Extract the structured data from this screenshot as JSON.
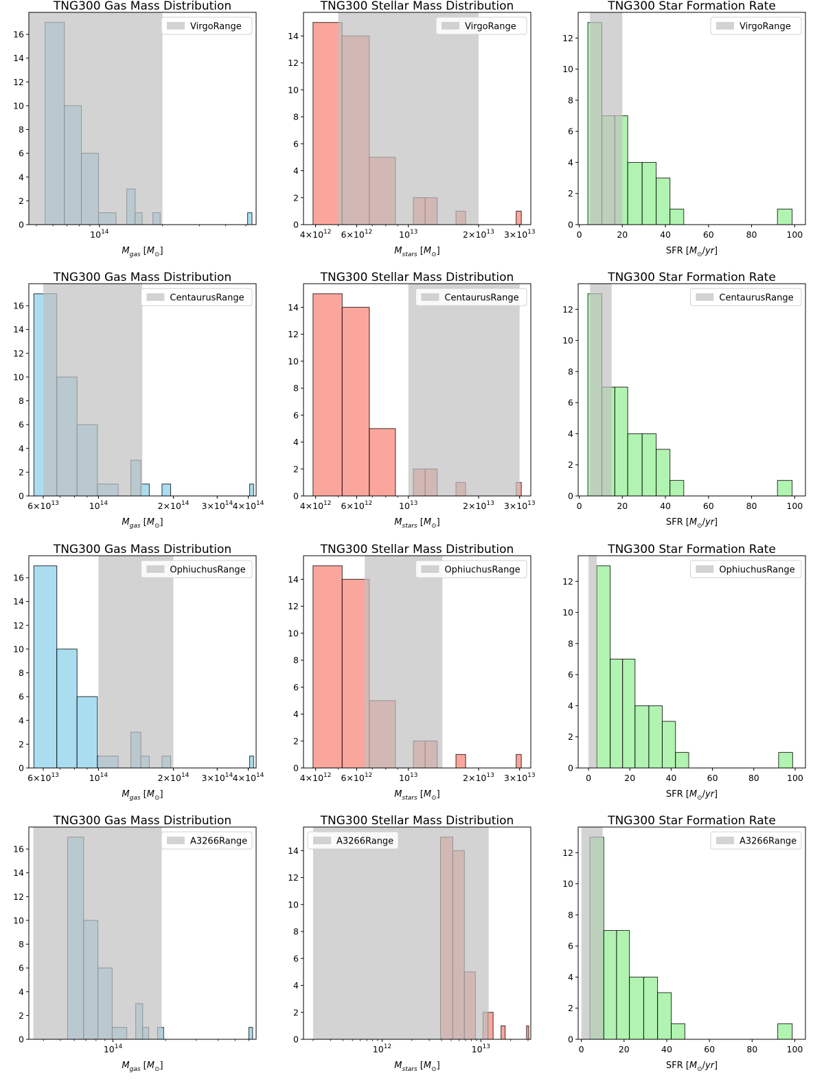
{
  "colors": {
    "gas": "#87ceeb",
    "stars": "#fa8072",
    "sfr": "#90ee90",
    "range": "#c0c0c0"
  },
  "chart_data": [
    {
      "type": "bar",
      "title": "TNG300 Gas Mass Distribution",
      "xlabel": "M_gas [M_⊙]",
      "xscale": "log",
      "xlim": [
        46000000000000.0,
        560000000000000.0
      ],
      "ylim": [
        0,
        17.85
      ],
      "yticks": [
        0,
        2,
        4,
        6,
        8,
        10,
        12,
        14,
        16
      ],
      "xticks": [
        {
          "value": 100000000000000.0,
          "label": "10^14"
        }
      ],
      "color": "gas",
      "bins": [
        [
          55000000000000.0,
          68000000000000.0,
          17
        ],
        [
          68000000000000.0,
          82000000000000.0,
          10
        ],
        [
          82000000000000.0,
          99000000000000.0,
          6
        ],
        [
          99000000000000.0,
          120000000000000.0,
          1
        ],
        [
          135000000000000.0,
          148000000000000.0,
          3
        ],
        [
          148000000000000.0,
          160000000000000.0,
          1
        ],
        [
          180000000000000.0,
          195000000000000.0,
          1
        ],
        [
          510000000000000.0,
          535000000000000.0,
          1
        ]
      ],
      "range": [
        46000000000000.0,
        200000000000000.0
      ],
      "legend": "VirgoRange",
      "legend_loc": "upper right"
    },
    {
      "type": "bar",
      "title": "TNG300 Stellar Mass Distribution",
      "xlabel": "M_stars [M_⊙]",
      "xscale": "log",
      "xlim": [
        3550000000000.0,
        33500000000000.0
      ],
      "ylim": [
        0,
        15.75
      ],
      "yticks": [
        0,
        2,
        4,
        6,
        8,
        10,
        12,
        14
      ],
      "xticks": [
        {
          "value": 4000000000000.0,
          "label": "4×10^12"
        },
        {
          "value": 6000000000000.0,
          "label": "6×10^12"
        },
        {
          "value": 10000000000000.0,
          "label": "10^13"
        },
        {
          "value": 20000000000000.0,
          "label": "2×10^13"
        },
        {
          "value": 30000000000000.0,
          "label": "3×10^13"
        }
      ],
      "color": "stars",
      "bins": [
        [
          3900000000000.0,
          5200000000000.0,
          15
        ],
        [
          5200000000000.0,
          6800000000000.0,
          14
        ],
        [
          6800000000000.0,
          8800000000000.0,
          5
        ],
        [
          10500000000000.0,
          11800000000000.0,
          2
        ],
        [
          11800000000000.0,
          13300000000000.0,
          2
        ],
        [
          16000000000000.0,
          17600000000000.0,
          1
        ],
        [
          29000000000000.0,
          30500000000000.0,
          1
        ]
      ],
      "range": [
        5000000000000.0,
        20000000000000.0
      ],
      "legend": "VirgoRange",
      "legend_loc": "upper right"
    },
    {
      "type": "bar",
      "title": "TNG300 Star Formation Rate",
      "xlabel": "SFR [M_⊙/yr]",
      "xscale": "linear",
      "xlim": [
        -0.5,
        105
      ],
      "ylim": [
        0,
        13.65
      ],
      "yticks": [
        0,
        2,
        4,
        6,
        8,
        10,
        12
      ],
      "xticks": [
        {
          "value": 0,
          "label": "0"
        },
        {
          "value": 20,
          "label": "20"
        },
        {
          "value": 40,
          "label": "40"
        },
        {
          "value": 60,
          "label": "60"
        },
        {
          "value": 80,
          "label": "80"
        },
        {
          "value": 100,
          "label": "100"
        }
      ],
      "color": "sfr",
      "bins": [
        [
          4,
          10.5,
          13
        ],
        [
          10.5,
          16.5,
          7
        ],
        [
          16.5,
          22.5,
          7
        ],
        [
          22.5,
          29.2,
          4
        ],
        [
          29.2,
          35.7,
          4
        ],
        [
          35.7,
          42.1,
          3
        ],
        [
          42.1,
          48.5,
          1
        ],
        [
          92,
          98.8,
          1
        ]
      ],
      "range": [
        5,
        20
      ],
      "legend": "VirgoRange",
      "legend_loc": "upper right"
    },
    {
      "type": "bar",
      "title": "TNG300 Gas Mass Distribution",
      "xlabel": "M_gas [M_⊙]",
      "xscale": "log",
      "xlim": [
        52500000000000.0,
        430000000000000.0
      ],
      "ylim": [
        0,
        17.85
      ],
      "yticks": [
        0,
        2,
        4,
        6,
        8,
        10,
        12,
        14,
        16
      ],
      "xticks": [
        {
          "value": 60000000000000.0,
          "label": "6×10^13"
        },
        {
          "value": 100000000000000.0,
          "label": "10^14"
        },
        {
          "value": 200000000000000.0,
          "label": "2×10^14"
        },
        {
          "value": 300000000000000.0,
          "label": "3×10^14"
        },
        {
          "value": 400000000000000.0,
          "label": "4×10^14"
        }
      ],
      "color": "gas",
      "bins": [
        [
          55000000000000.0,
          68000000000000.0,
          17
        ],
        [
          68000000000000.0,
          82000000000000.0,
          10
        ],
        [
          82000000000000.0,
          99000000000000.0,
          6
        ],
        [
          99000000000000.0,
          120000000000000.0,
          1
        ],
        [
          135000000000000.0,
          148000000000000.0,
          3
        ],
        [
          148000000000000.0,
          160000000000000.0,
          1
        ],
        [
          180000000000000.0,
          195000000000000.0,
          1
        ],
        [
          405000000000000.0,
          420000000000000.0,
          1
        ]
      ],
      "range": [
        60000000000000.0,
        150000000000000.0
      ],
      "legend": "CentaurusRange",
      "legend_loc": "upper right"
    },
    {
      "type": "bar",
      "title": "TNG300 Stellar Mass Distribution",
      "xlabel": "M_stars [M_⊙]",
      "xscale": "log",
      "xlim": [
        3550000000000.0,
        33500000000000.0
      ],
      "ylim": [
        0,
        15.75
      ],
      "yticks": [
        0,
        2,
        4,
        6,
        8,
        10,
        12,
        14
      ],
      "xticks": [
        {
          "value": 4000000000000.0,
          "label": "4×10^12"
        },
        {
          "value": 6000000000000.0,
          "label": "6×10^12"
        },
        {
          "value": 10000000000000.0,
          "label": "10^13"
        },
        {
          "value": 20000000000000.0,
          "label": "2×10^13"
        },
        {
          "value": 30000000000000.0,
          "label": "3×10^13"
        }
      ],
      "color": "stars",
      "bins": [
        [
          3900000000000.0,
          5200000000000.0,
          15
        ],
        [
          5200000000000.0,
          6800000000000.0,
          14
        ],
        [
          6800000000000.0,
          8800000000000.0,
          5
        ],
        [
          10500000000000.0,
          11800000000000.0,
          2
        ],
        [
          11800000000000.0,
          13300000000000.0,
          2
        ],
        [
          16000000000000.0,
          17600000000000.0,
          1
        ],
        [
          29000000000000.0,
          30500000000000.0,
          1
        ]
      ],
      "range": [
        10000000000000.0,
        30000000000000.0
      ],
      "legend": "CentaurusRange",
      "legend_loc": "upper right"
    },
    {
      "type": "bar",
      "title": "TNG300 Star Formation Rate",
      "xlabel": "SFR [M_⊙/yr]",
      "xscale": "linear",
      "xlim": [
        -0.5,
        105
      ],
      "ylim": [
        0,
        13.65
      ],
      "yticks": [
        0,
        2,
        4,
        6,
        8,
        10,
        12
      ],
      "xticks": [
        {
          "value": 0,
          "label": "0"
        },
        {
          "value": 20,
          "label": "20"
        },
        {
          "value": 40,
          "label": "40"
        },
        {
          "value": 60,
          "label": "60"
        },
        {
          "value": 80,
          "label": "80"
        },
        {
          "value": 100,
          "label": "100"
        }
      ],
      "color": "sfr",
      "bins": [
        [
          4,
          10.5,
          13
        ],
        [
          10.5,
          16.5,
          7
        ],
        [
          16.5,
          22.5,
          7
        ],
        [
          22.5,
          29.2,
          4
        ],
        [
          29.2,
          35.7,
          4
        ],
        [
          35.7,
          42.1,
          3
        ],
        [
          42.1,
          48.5,
          1
        ],
        [
          92,
          98.8,
          1
        ]
      ],
      "range": [
        5,
        15
      ],
      "legend": "CentaurusRange",
      "legend_loc": "upper right"
    },
    {
      "type": "bar",
      "title": "TNG300 Gas Mass Distribution",
      "xlabel": "M_gas [M_⊙]",
      "xscale": "log",
      "xlim": [
        52500000000000.0,
        430000000000000.0
      ],
      "ylim": [
        0,
        17.85
      ],
      "yticks": [
        0,
        2,
        4,
        6,
        8,
        10,
        12,
        14,
        16
      ],
      "xticks": [
        {
          "value": 60000000000000.0,
          "label": "6×10^13"
        },
        {
          "value": 100000000000000.0,
          "label": "10^14"
        },
        {
          "value": 200000000000000.0,
          "label": "2×10^14"
        },
        {
          "value": 300000000000000.0,
          "label": "3×10^14"
        },
        {
          "value": 400000000000000.0,
          "label": "4×10^14"
        }
      ],
      "color": "gas",
      "bins": [
        [
          55000000000000.0,
          68000000000000.0,
          17
        ],
        [
          68000000000000.0,
          82000000000000.0,
          10
        ],
        [
          82000000000000.0,
          99000000000000.0,
          6
        ],
        [
          99000000000000.0,
          120000000000000.0,
          1
        ],
        [
          135000000000000.0,
          148000000000000.0,
          3
        ],
        [
          148000000000000.0,
          160000000000000.0,
          1
        ],
        [
          180000000000000.0,
          195000000000000.0,
          1
        ],
        [
          405000000000000.0,
          420000000000000.0,
          1
        ]
      ],
      "range": [
        100000000000000.0,
        200000000000000.0
      ],
      "legend": "OphiuchusRange",
      "legend_loc": "upper right"
    },
    {
      "type": "bar",
      "title": "TNG300 Stellar Mass Distribution",
      "xlabel": "M_stars [M_⊙]",
      "xscale": "log",
      "xlim": [
        3550000000000.0,
        33500000000000.0
      ],
      "ylim": [
        0,
        15.75
      ],
      "yticks": [
        0,
        2,
        4,
        6,
        8,
        10,
        12,
        14
      ],
      "xticks": [
        {
          "value": 4000000000000.0,
          "label": "4×10^12"
        },
        {
          "value": 6000000000000.0,
          "label": "6×10^12"
        },
        {
          "value": 10000000000000.0,
          "label": "10^13"
        },
        {
          "value": 20000000000000.0,
          "label": "2×10^13"
        },
        {
          "value": 30000000000000.0,
          "label": "3×10^13"
        }
      ],
      "color": "stars",
      "bins": [
        [
          3900000000000.0,
          5200000000000.0,
          15
        ],
        [
          5200000000000.0,
          6800000000000.0,
          14
        ],
        [
          6800000000000.0,
          8800000000000.0,
          5
        ],
        [
          10500000000000.0,
          11800000000000.0,
          2
        ],
        [
          11800000000000.0,
          13300000000000.0,
          2
        ],
        [
          16000000000000.0,
          17600000000000.0,
          1
        ],
        [
          29000000000000.0,
          30500000000000.0,
          1
        ]
      ],
      "range": [
        6500000000000.0,
        14000000000000.0
      ],
      "legend": "OphiuchusRange",
      "legend_loc": "upper right"
    },
    {
      "type": "bar",
      "title": "TNG300 Star Formation Rate",
      "xlabel": "SFR [M_⊙/yr]",
      "xscale": "linear",
      "xlim": [
        -5,
        105
      ],
      "ylim": [
        0,
        13.65
      ],
      "yticks": [
        0,
        2,
        4,
        6,
        8,
        10,
        12
      ],
      "xticks": [
        {
          "value": 0,
          "label": "0"
        },
        {
          "value": 20,
          "label": "20"
        },
        {
          "value": 40,
          "label": "40"
        },
        {
          "value": 60,
          "label": "60"
        },
        {
          "value": 80,
          "label": "80"
        },
        {
          "value": 100,
          "label": "100"
        }
      ],
      "color": "sfr",
      "bins": [
        [
          4,
          10.5,
          13
        ],
        [
          10.5,
          16.5,
          7
        ],
        [
          16.5,
          22.5,
          7
        ],
        [
          22.5,
          29.2,
          4
        ],
        [
          29.2,
          35.7,
          4
        ],
        [
          35.7,
          42.1,
          3
        ],
        [
          42.1,
          48.5,
          1
        ],
        [
          92,
          98.8,
          1
        ]
      ],
      "range": [
        0,
        4
      ],
      "legend": "OphiuchusRange",
      "legend_loc": "upper right"
    },
    {
      "type": "bar",
      "title": "TNG300 Gas Mass Distribution",
      "xlabel": "M_gas [M_⊙]",
      "xscale": "log",
      "xlim": [
        33000000000000.0,
        660000000000000.0
      ],
      "ylim": [
        0,
        17.85
      ],
      "yticks": [
        0,
        2,
        4,
        6,
        8,
        10,
        12,
        14,
        16
      ],
      "xticks": [
        {
          "value": 100000000000000.0,
          "label": "10^14"
        }
      ],
      "color": "gas",
      "bins": [
        [
          55000000000000.0,
          68000000000000.0,
          17
        ],
        [
          68000000000000.0,
          82000000000000.0,
          10
        ],
        [
          82000000000000.0,
          99000000000000.0,
          6
        ],
        [
          99000000000000.0,
          120000000000000.0,
          1
        ],
        [
          135000000000000.0,
          148000000000000.0,
          3
        ],
        [
          148000000000000.0,
          160000000000000.0,
          1
        ],
        [
          180000000000000.0,
          195000000000000.0,
          1
        ],
        [
          600000000000000.0,
          630000000000000.0,
          1
        ]
      ],
      "range": [
        35000000000000.0,
        190000000000000.0
      ],
      "legend": "A3266Range",
      "legend_loc": "upper right"
    },
    {
      "type": "bar",
      "title": "TNG300 Stellar Mass Distribution",
      "xlabel": "M_stars [M_⊙]",
      "xscale": "log",
      "xlim": [
        160000000000.0,
        32000000000000.0
      ],
      "ylim": [
        0,
        15.75
      ],
      "yticks": [
        0,
        2,
        4,
        6,
        8,
        10,
        12,
        14
      ],
      "xticks": [
        {
          "value": 1000000000000.0,
          "label": "10^12"
        },
        {
          "value": 10000000000000.0,
          "label": "10^13"
        }
      ],
      "color": "stars",
      "bins": [
        [
          3900000000000.0,
          5200000000000.0,
          15
        ],
        [
          5200000000000.0,
          6800000000000.0,
          14
        ],
        [
          6800000000000.0,
          8800000000000.0,
          5
        ],
        [
          10500000000000.0,
          11800000000000.0,
          2
        ],
        [
          11800000000000.0,
          13300000000000.0,
          2
        ],
        [
          16000000000000.0,
          17600000000000.0,
          1
        ],
        [
          29000000000000.0,
          30500000000000.0,
          1
        ]
      ],
      "range": [
        200000000000.0,
        12000000000000.0
      ],
      "legend": "A3266Range",
      "legend_loc": "upper left"
    },
    {
      "type": "bar",
      "title": "TNG300 Star Formation Rate",
      "xlabel": "SFR [M_⊙/yr]",
      "xscale": "linear",
      "xlim": [
        -1.5,
        105
      ],
      "ylim": [
        0,
        13.65
      ],
      "yticks": [
        0,
        2,
        4,
        6,
        8,
        10,
        12
      ],
      "xticks": [
        {
          "value": 0,
          "label": "0"
        },
        {
          "value": 20,
          "label": "20"
        },
        {
          "value": 40,
          "label": "40"
        },
        {
          "value": 60,
          "label": "60"
        },
        {
          "value": 80,
          "label": "80"
        },
        {
          "value": 100,
          "label": "100"
        }
      ],
      "color": "sfr",
      "bins": [
        [
          4,
          10.5,
          13
        ],
        [
          10.5,
          16.5,
          7
        ],
        [
          16.5,
          22.5,
          7
        ],
        [
          22.5,
          29.2,
          4
        ],
        [
          29.2,
          35.7,
          4
        ],
        [
          35.7,
          42.1,
          3
        ],
        [
          42.1,
          48.5,
          1
        ],
        [
          92,
          98.8,
          1
        ]
      ],
      "range": [
        0,
        10
      ],
      "legend": "A3266Range",
      "legend_loc": "upper right"
    }
  ]
}
